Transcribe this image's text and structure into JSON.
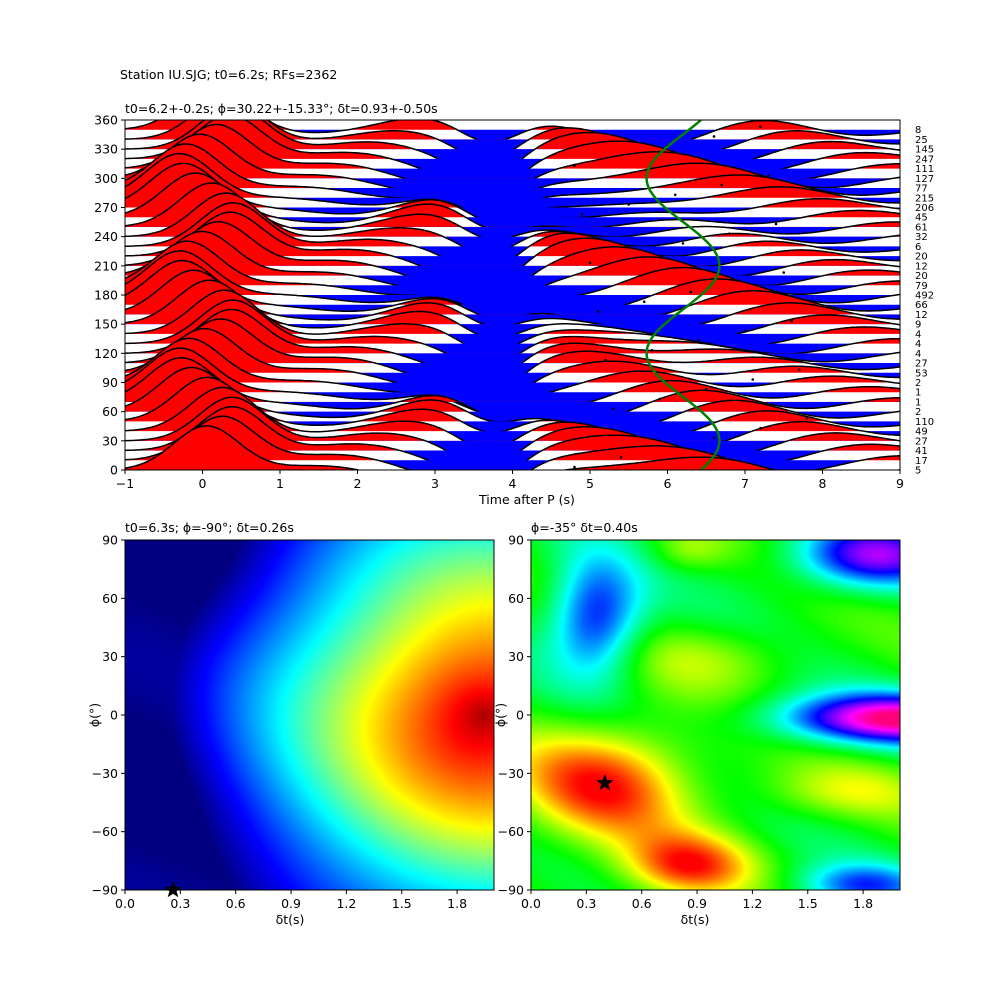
{
  "figure_title": "Station IU.SJG; t0=6.2s; RFs=2362",
  "chart_data": [
    {
      "type": "line",
      "subtype": "wiggle-traces",
      "title": "t0=6.2+-0.2s; ϕ=30.22+-15.33°; δt=0.93+-0.50s",
      "xlabel": "Time after P (s)",
      "ylabel": "",
      "xlim": [
        -1,
        9
      ],
      "ylim": [
        0,
        360
      ],
      "xticks": [
        -1,
        0,
        1,
        2,
        3,
        4,
        5,
        6,
        7,
        8,
        9
      ],
      "yticks": [
        0,
        30,
        60,
        90,
        120,
        150,
        180,
        210,
        240,
        270,
        300,
        330,
        360
      ],
      "positive_fill": "#ff0000",
      "negative_fill": "#0000ff",
      "trace_color": "#000000",
      "curve_color": "#008000",
      "trace_baselines_deg": [
        0,
        10,
        20,
        30,
        40,
        50,
        60,
        70,
        80,
        90,
        100,
        110,
        120,
        130,
        140,
        150,
        160,
        170,
        180,
        190,
        200,
        210,
        220,
        230,
        240,
        250,
        260,
        270,
        280,
        290,
        300,
        310,
        320,
        330,
        340,
        350
      ],
      "rf_counts": [
        "5",
        "17",
        "41",
        "27",
        "49",
        "110",
        "2",
        "1",
        "1",
        "2",
        "53",
        "27",
        "4",
        "4",
        "4",
        "9",
        "12",
        "66",
        "492",
        "79",
        "20",
        "12",
        "20",
        "6",
        "32",
        "61",
        "45",
        "206",
        "215",
        "77",
        "127",
        "111",
        "247",
        "145",
        "25",
        "8"
      ],
      "delay_curve": {
        "mean_s": 6.2,
        "amplitude_s": 0.47,
        "phase_deg": 30.22
      }
    },
    {
      "type": "heatmap",
      "title": "t0=6.3s; ϕ=-90°; δt=0.26s",
      "xlabel": "δt(s)",
      "ylabel": "ϕ(°)",
      "xlim": [
        0,
        2
      ],
      "ylim": [
        -90,
        90
      ],
      "xticks": [
        "0.0",
        "0.3",
        "0.6",
        "0.9",
        "1.2",
        "1.5",
        "1.8"
      ],
      "yticks": [
        "−90",
        "−60",
        "−30",
        "0",
        "30",
        "60",
        "90"
      ],
      "colormap": "jet",
      "best": {
        "dt": 0.26,
        "phi": -90
      }
    },
    {
      "type": "heatmap",
      "title": "ϕ=-35° δt=0.40s",
      "xlabel": "δt(s)",
      "ylabel": "ϕ(°)",
      "xlim": [
        0,
        2
      ],
      "ylim": [
        -90,
        90
      ],
      "xticks": [
        "0.0",
        "0.3",
        "0.6",
        "0.9",
        "1.2",
        "1.5",
        "1.8"
      ],
      "yticks": [
        "−90",
        "−60",
        "−30",
        "0",
        "30",
        "60",
        "90"
      ],
      "colormap": "hsv",
      "best": {
        "dt": 0.4,
        "phi": -35
      }
    }
  ]
}
